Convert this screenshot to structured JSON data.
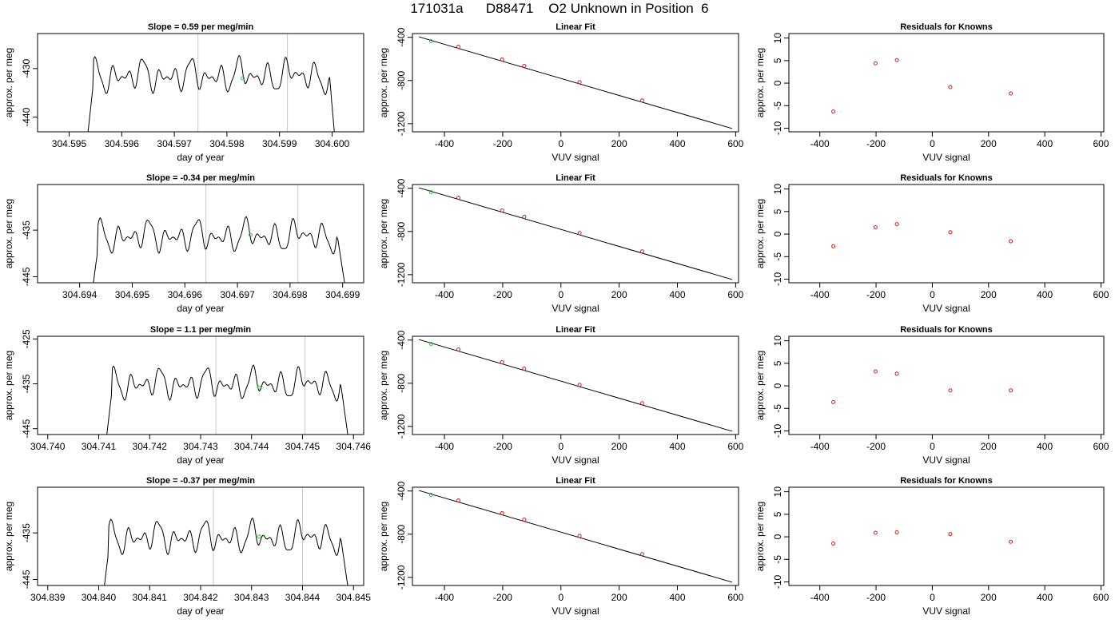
{
  "page": {
    "title": "171031a      D88471    O2 Unknown in Position  6"
  },
  "chart_data": [
    {
      "type": "line",
      "panel": "timeseries",
      "row": 0,
      "title": "Slope =  0.59  per meg/min",
      "xlabel": "day of year",
      "ylabel": "approx. per meg",
      "xlim": [
        304.5944,
        304.6006
      ],
      "ylim": [
        -443.0,
        -422.8
      ],
      "xticks": [
        304.595,
        304.596,
        304.597,
        304.598,
        304.599,
        304.6
      ],
      "xtick_labels": [
        "304.595",
        "304.596",
        "304.597",
        "304.598",
        "304.599",
        "304.600"
      ],
      "yticks": [
        -430,
        -440
      ],
      "ytick_labels": [
        "-430",
        "-440"
      ],
      "vlines": [
        304.59745,
        304.59915
      ],
      "series_range": [
        304.59535,
        304.60005
      ],
      "plateau": [
        304.59545,
        304.59995
      ],
      "series_mean": -431.5,
      "series_amp": 2.0,
      "marker": {
        "x": 304.5983,
        "y": -432.0
      }
    },
    {
      "type": "line",
      "panel": "fit",
      "row": 0,
      "title": "Linear Fit",
      "xlabel": "VUV signal",
      "ylabel": "approx. per meg",
      "xlim": [
        -510,
        610
      ],
      "ylim": [
        -1275,
        -365
      ],
      "xticks": [
        -400,
        -200,
        0,
        200,
        400,
        600
      ],
      "xtick_labels": [
        "-400",
        "-200",
        "0",
        "200",
        "400",
        "600"
      ],
      "yticks": [
        -400,
        -800,
        -1200
      ],
      "ytick_labels": [
        "-400",
        "-800",
        "-1200"
      ],
      "fit_line": {
        "x": [
          -488,
          588
        ],
        "y": [
          -395,
          -1245
        ]
      },
      "points": {
        "x": [
          -352,
          -202,
          -126,
          64,
          279
        ],
        "y": [
          -487,
          -605,
          -665,
          -815,
          -985
        ]
      },
      "highlight": {
        "x": [
          -446
        ],
        "y": [
          -435
        ]
      }
    },
    {
      "type": "scatter",
      "panel": "residuals",
      "row": 0,
      "title": "Residuals for Knowns",
      "xlabel": "VUV signal",
      "ylabel": "approx. per meg",
      "xlim": [
        -510,
        610
      ],
      "ylim": [
        -10.8,
        11.0
      ],
      "xticks": [
        -400,
        -200,
        0,
        200,
        400,
        600
      ],
      "xtick_labels": [
        "-400",
        "-200",
        "0",
        "200",
        "400",
        "600"
      ],
      "yticks": [
        10,
        5,
        0,
        -5,
        -10
      ],
      "ytick_labels": [
        "10",
        "5",
        "0",
        "-5",
        "-10"
      ],
      "points": {
        "x": [
          -352,
          -202,
          -126,
          64,
          279
        ],
        "y": [
          -6.3,
          4.4,
          5.1,
          -0.9,
          -2.3
        ]
      }
    },
    {
      "type": "line",
      "panel": "timeseries",
      "row": 1,
      "title": "Slope =  -0.34  per meg/min",
      "xlabel": "day of year",
      "ylabel": "approx. per meg",
      "xlim": [
        304.6932,
        304.6994
      ],
      "ylim": [
        -446.3,
        -425.2
      ],
      "xticks": [
        304.694,
        304.695,
        304.696,
        304.697,
        304.698,
        304.699
      ],
      "xtick_labels": [
        "304.694",
        "304.695",
        "304.696",
        "304.697",
        "304.698",
        "304.699"
      ],
      "yticks": [
        -435,
        -445
      ],
      "ytick_labels": [
        "-435",
        "-445"
      ],
      "vlines": [
        304.6964,
        304.69815
      ],
      "series_range": [
        304.69425,
        304.69905
      ],
      "plateau": [
        304.69435,
        304.6989
      ],
      "series_mean": -436.3,
      "series_amp": 2.0,
      "marker": {
        "x": 304.69725,
        "y": -436.0
      }
    },
    {
      "type": "line",
      "panel": "fit",
      "row": 1,
      "title": "Linear Fit",
      "xlabel": "VUV signal",
      "ylabel": "approx. per meg",
      "xlim": [
        -510,
        610
      ],
      "ylim": [
        -1275,
        -365
      ],
      "xticks": [
        -400,
        -200,
        0,
        200,
        400,
        600
      ],
      "xtick_labels": [
        "-400",
        "-200",
        "0",
        "200",
        "400",
        "600"
      ],
      "yticks": [
        -400,
        -800,
        -1200
      ],
      "ytick_labels": [
        "-400",
        "-800",
        "-1200"
      ],
      "fit_line": {
        "x": [
          -488,
          588
        ],
        "y": [
          -395,
          -1245
        ]
      },
      "points": {
        "x": [
          -352,
          -202,
          -126,
          64,
          279
        ],
        "y": [
          -487,
          -605,
          -665,
          -815,
          -985
        ]
      },
      "highlight": {
        "x": [
          -446
        ],
        "y": [
          -435
        ]
      }
    },
    {
      "type": "scatter",
      "panel": "residuals",
      "row": 1,
      "title": "Residuals for Knowns",
      "xlabel": "VUV signal",
      "ylabel": "approx. per meg",
      "xlim": [
        -510,
        610
      ],
      "ylim": [
        -10.8,
        11.0
      ],
      "xticks": [
        -400,
        -200,
        0,
        200,
        400,
        600
      ],
      "xtick_labels": [
        "-400",
        "-200",
        "0",
        "200",
        "400",
        "600"
      ],
      "yticks": [
        10,
        5,
        0,
        -5,
        -10
      ],
      "ytick_labels": [
        "10",
        "5",
        "0",
        "-5",
        "-10"
      ],
      "points": {
        "x": [
          -352,
          -202,
          -126,
          64,
          279
        ],
        "y": [
          -2.7,
          1.5,
          2.2,
          0.4,
          -1.6
        ]
      }
    },
    {
      "type": "line",
      "panel": "timeseries",
      "row": 2,
      "title": "Slope =  1.1  per meg/min",
      "xlabel": "day of year",
      "ylabel": "approx. per meg",
      "xlim": [
        304.7398,
        304.7462
      ],
      "ylim": [
        -446.3,
        -424.4
      ],
      "xticks": [
        304.74,
        304.741,
        304.742,
        304.743,
        304.744,
        304.745,
        304.746
      ],
      "xtick_labels": [
        "304.740",
        "304.741",
        "304.742",
        "304.743",
        "304.744",
        "304.745",
        "304.746"
      ],
      "yticks": [
        -425,
        -435,
        -445
      ],
      "ytick_labels": [
        "-425",
        "-435",
        "-445"
      ],
      "vlines": [
        304.7433,
        304.74505
      ],
      "series_range": [
        304.74115,
        304.7459
      ],
      "plateau": [
        304.74125,
        304.74575
      ],
      "series_mean": -435.0,
      "series_amp": 2.0,
      "marker": {
        "x": 304.74415,
        "y": -435.8
      }
    },
    {
      "type": "line",
      "panel": "fit",
      "row": 2,
      "title": "Linear Fit",
      "xlabel": "VUV signal",
      "ylabel": "approx. per meg",
      "xlim": [
        -510,
        610
      ],
      "ylim": [
        -1275,
        -365
      ],
      "xticks": [
        -400,
        -200,
        0,
        200,
        400,
        600
      ],
      "xtick_labels": [
        "-400",
        "-200",
        "0",
        "200",
        "400",
        "600"
      ],
      "yticks": [
        -400,
        -800,
        -1200
      ],
      "ytick_labels": [
        "-400",
        "-800",
        "-1200"
      ],
      "fit_line": {
        "x": [
          -488,
          588
        ],
        "y": [
          -395,
          -1245
        ]
      },
      "points": {
        "x": [
          -352,
          -202,
          -126,
          64,
          279
        ],
        "y": [
          -487,
          -605,
          -665,
          -815,
          -985
        ]
      },
      "highlight": {
        "x": [
          -446
        ],
        "y": [
          -435
        ]
      }
    },
    {
      "type": "scatter",
      "panel": "residuals",
      "row": 2,
      "title": "Residuals for Knowns",
      "xlabel": "VUV signal",
      "ylabel": "approx. per meg",
      "xlim": [
        -510,
        610
      ],
      "ylim": [
        -10.8,
        11.0
      ],
      "xticks": [
        -400,
        -200,
        0,
        200,
        400,
        600
      ],
      "xtick_labels": [
        "-400",
        "-200",
        "0",
        "200",
        "400",
        "600"
      ],
      "yticks": [
        10,
        5,
        0,
        -5,
        -10
      ],
      "ytick_labels": [
        "10",
        "5",
        "0",
        "-5",
        "-10"
      ],
      "points": {
        "x": [
          -352,
          -202,
          -126,
          64,
          279
        ],
        "y": [
          -3.6,
          3.2,
          2.7,
          -1.0,
          -1.0
        ]
      }
    },
    {
      "type": "line",
      "panel": "timeseries",
      "row": 3,
      "title": "Slope =  -0.37  per meg/min",
      "xlabel": "day of year",
      "ylabel": "approx. per meg",
      "xlim": [
        304.8388,
        304.8452
      ],
      "ylim": [
        -446.3,
        -425.2
      ],
      "xticks": [
        304.839,
        304.84,
        304.841,
        304.842,
        304.843,
        304.844,
        304.845
      ],
      "xtick_labels": [
        "304.839",
        "304.840",
        "304.841",
        "304.842",
        "304.843",
        "304.844",
        "304.845"
      ],
      "yticks": [
        -435,
        -445
      ],
      "ytick_labels": [
        "-435",
        "-445"
      ],
      "vlines": [
        304.84225,
        304.844
      ],
      "series_range": [
        304.8401,
        304.8449
      ],
      "plateau": [
        304.8402,
        304.84475
      ],
      "series_mean": -436.0,
      "series_amp": 2.0,
      "marker": {
        "x": 304.84315,
        "y": -435.8
      }
    },
    {
      "type": "line",
      "panel": "fit",
      "row": 3,
      "title": "Linear Fit",
      "xlabel": "VUV signal",
      "ylabel": "approx. per meg",
      "xlim": [
        -510,
        610
      ],
      "ylim": [
        -1275,
        -365
      ],
      "xticks": [
        -400,
        -200,
        0,
        200,
        400,
        600
      ],
      "xtick_labels": [
        "-400",
        "-200",
        "0",
        "200",
        "400",
        "600"
      ],
      "yticks": [
        -400,
        -800,
        -1200
      ],
      "ytick_labels": [
        "-400",
        "-800",
        "-1200"
      ],
      "fit_line": {
        "x": [
          -488,
          588
        ],
        "y": [
          -395,
          -1245
        ]
      },
      "points": {
        "x": [
          -352,
          -202,
          -126,
          64,
          279
        ],
        "y": [
          -487,
          -605,
          -665,
          -815,
          -985
        ]
      },
      "highlight": {
        "x": [
          -446
        ],
        "y": [
          -435
        ]
      }
    },
    {
      "type": "scatter",
      "panel": "residuals",
      "row": 3,
      "title": "Residuals for Knowns",
      "xlabel": "VUV signal",
      "ylabel": "approx. per meg",
      "xlim": [
        -510,
        610
      ],
      "ylim": [
        -10.8,
        11.0
      ],
      "xticks": [
        -400,
        -200,
        0,
        200,
        400,
        600
      ],
      "xtick_labels": [
        "-400",
        "-200",
        "0",
        "200",
        "400",
        "600"
      ],
      "yticks": [
        10,
        5,
        0,
        -5,
        -10
      ],
      "ytick_labels": [
        "10",
        "5",
        "0",
        "-5",
        "-10"
      ],
      "points": {
        "x": [
          -352,
          -202,
          -126,
          64,
          279
        ],
        "y": [
          -1.5,
          0.9,
          1.0,
          0.6,
          -1.1
        ]
      }
    }
  ],
  "colors": {
    "line": "#000000",
    "points": "#cc2222",
    "highlight": "#22cc22",
    "vline": "#c8c8c8",
    "frame": "#000000"
  }
}
